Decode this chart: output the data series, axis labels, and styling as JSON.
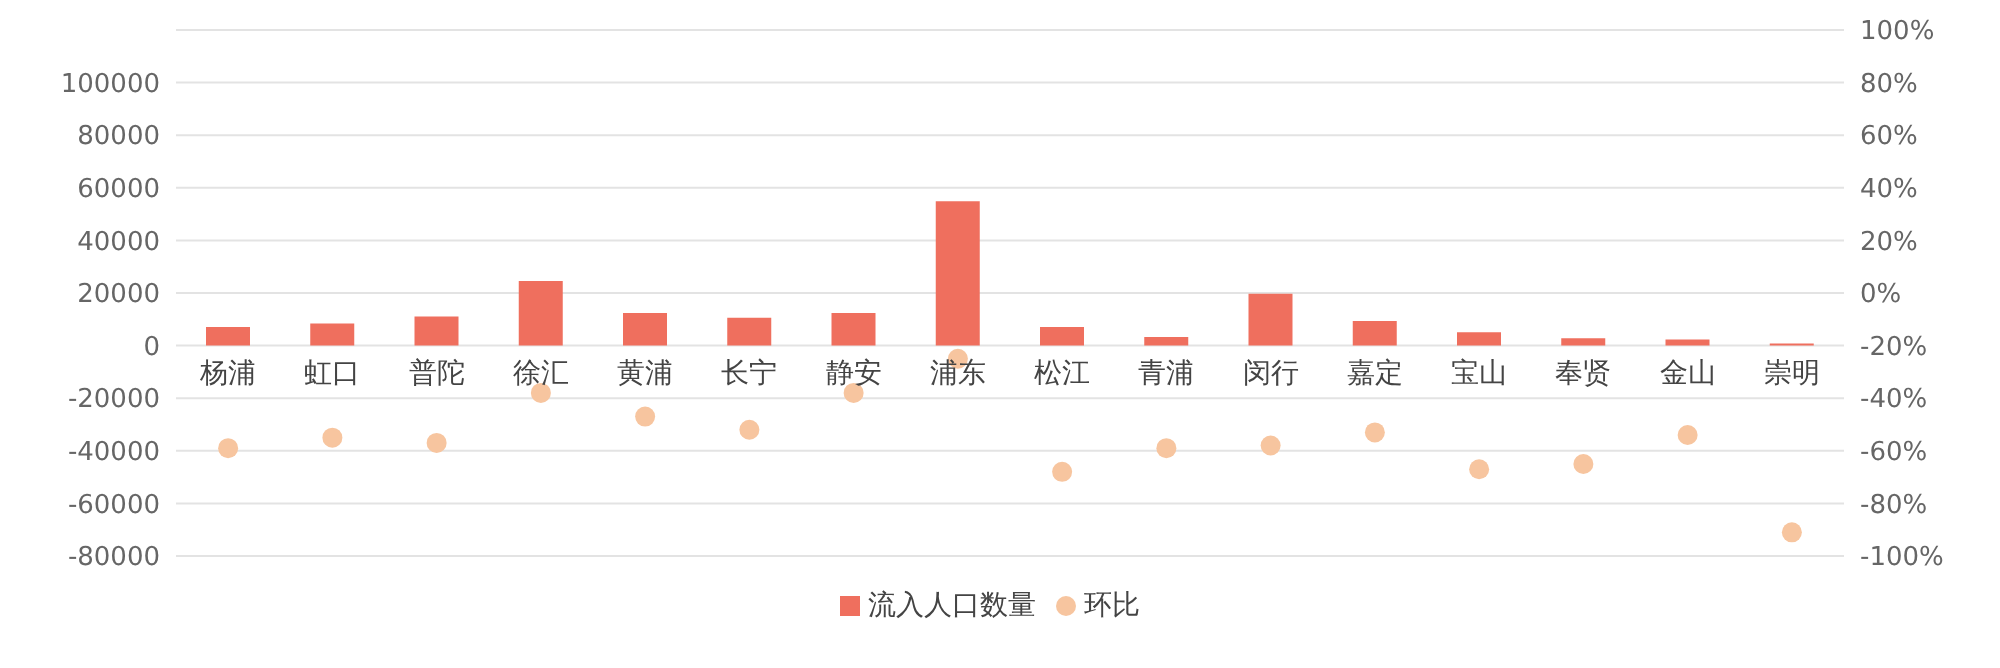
{
  "chart_data": {
    "type": "bar",
    "categories": [
      "杨浦",
      "虹口",
      "普陀",
      "徐汇",
      "黄浦",
      "长宁",
      "静安",
      "浦东",
      "松江",
      "青浦",
      "闵行",
      "嘉定",
      "宝山",
      "奉贤",
      "金山",
      "崇明"
    ],
    "series": [
      {
        "name": "流入人口数量",
        "color": "#ef6f5e",
        "values": [
          7100,
          8400,
          11100,
          24600,
          12400,
          10600,
          12400,
          54900,
          7100,
          3300,
          19700,
          9400,
          5100,
          2800,
          2300,
          800
        ]
      },
      {
        "name": "环比",
        "type": "scatter",
        "axis": "y2",
        "color": "#f7c59f",
        "marker": "circle",
        "values": [
          -59,
          -55,
          -57,
          -38,
          -47,
          -52,
          -38,
          -25,
          -68,
          -59,
          -58,
          -53,
          -67,
          -65,
          -54,
          -91
        ]
      }
    ],
    "ylim": [
      -80000,
      120000
    ],
    "yticks": [
      -80000,
      -60000,
      -40000,
      -20000,
      0,
      20000,
      40000,
      60000,
      80000,
      100000
    ],
    "y2lim": [
      -100,
      100
    ],
    "y2ticks": [
      {
        "value": -100,
        "label": "-100%"
      },
      {
        "value": -80,
        "label": "-80%"
      },
      {
        "value": -60,
        "label": "-60%"
      },
      {
        "value": -40,
        "label": "-40%"
      },
      {
        "value": -20,
        "label": "-20%"
      },
      {
        "value": 0,
        "label": "0%"
      },
      {
        "value": 20,
        "label": "20%"
      },
      {
        "value": 40,
        "label": "40%"
      },
      {
        "value": 60,
        "label": "60%"
      },
      {
        "value": 80,
        "label": "80%"
      },
      {
        "value": 100,
        "label": "100%"
      }
    ],
    "grid": "y",
    "legend": "bottom"
  }
}
